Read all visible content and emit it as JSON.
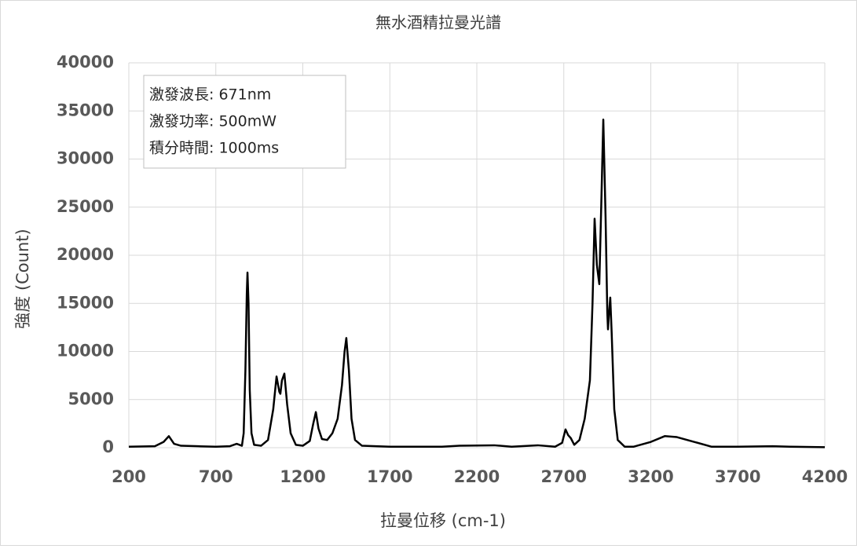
{
  "chart_data": {
    "type": "line",
    "title": "無水酒精拉曼光譜",
    "x_label": "拉曼位移 (cm-1)",
    "y_label": "強度 (Count)",
    "annotations": [
      "激發波長: 671nm",
      "激發功率: 500mW",
      "積分時間: 1000ms"
    ],
    "color": "#000000",
    "grid": true,
    "xlim": [
      200,
      4200
    ],
    "xticks": [
      200,
      700,
      1200,
      1700,
      2200,
      2700,
      3200,
      3700,
      4200
    ],
    "ylim": [
      0,
      40000
    ],
    "yticks": [
      0,
      5000,
      10000,
      15000,
      20000,
      25000,
      30000,
      35000,
      40000
    ],
    "x": [
      200,
      350,
      400,
      430,
      460,
      500,
      600,
      700,
      780,
      820,
      850,
      860,
      870,
      878,
      882,
      888,
      895,
      905,
      920,
      960,
      1000,
      1030,
      1049,
      1065,
      1071,
      1080,
      1094,
      1110,
      1130,
      1160,
      1200,
      1240,
      1260,
      1275,
      1290,
      1310,
      1340,
      1370,
      1400,
      1425,
      1440,
      1450,
      1465,
      1480,
      1500,
      1540,
      1700,
      2000,
      2100,
      2300,
      2400,
      2550,
      2650,
      2690,
      2710,
      2725,
      2740,
      2760,
      2790,
      2820,
      2850,
      2865,
      2877,
      2890,
      2904,
      2915,
      2927,
      2940,
      2950,
      2954,
      2960,
      2967,
      2975,
      2990,
      3010,
      3050,
      3100,
      3200,
      3280,
      3350,
      3450,
      3550,
      3700,
      3900,
      4000,
      4200
    ],
    "values": [
      100,
      150,
      600,
      1200,
      400,
      200,
      150,
      100,
      150,
      400,
      200,
      1500,
      8000,
      16000,
      18200,
      15000,
      6000,
      1500,
      300,
      200,
      800,
      4000,
      7400,
      5800,
      5600,
      7000,
      7700,
      4500,
      1500,
      300,
      200,
      700,
      2500,
      3700,
      2000,
      900,
      800,
      1500,
      3000,
      6500,
      10000,
      11400,
      8000,
      3000,
      800,
      200,
      100,
      100,
      200,
      250,
      100,
      250,
      100,
      500,
      1900,
      1300,
      1000,
      300,
      800,
      3000,
      7000,
      15000,
      23800,
      19000,
      17000,
      25000,
      34100,
      24000,
      14000,
      12300,
      14000,
      15600,
      12000,
      4000,
      800,
      100,
      100,
      600,
      1200,
      1100,
      600,
      100,
      100,
      150,
      100,
      50
    ]
  }
}
